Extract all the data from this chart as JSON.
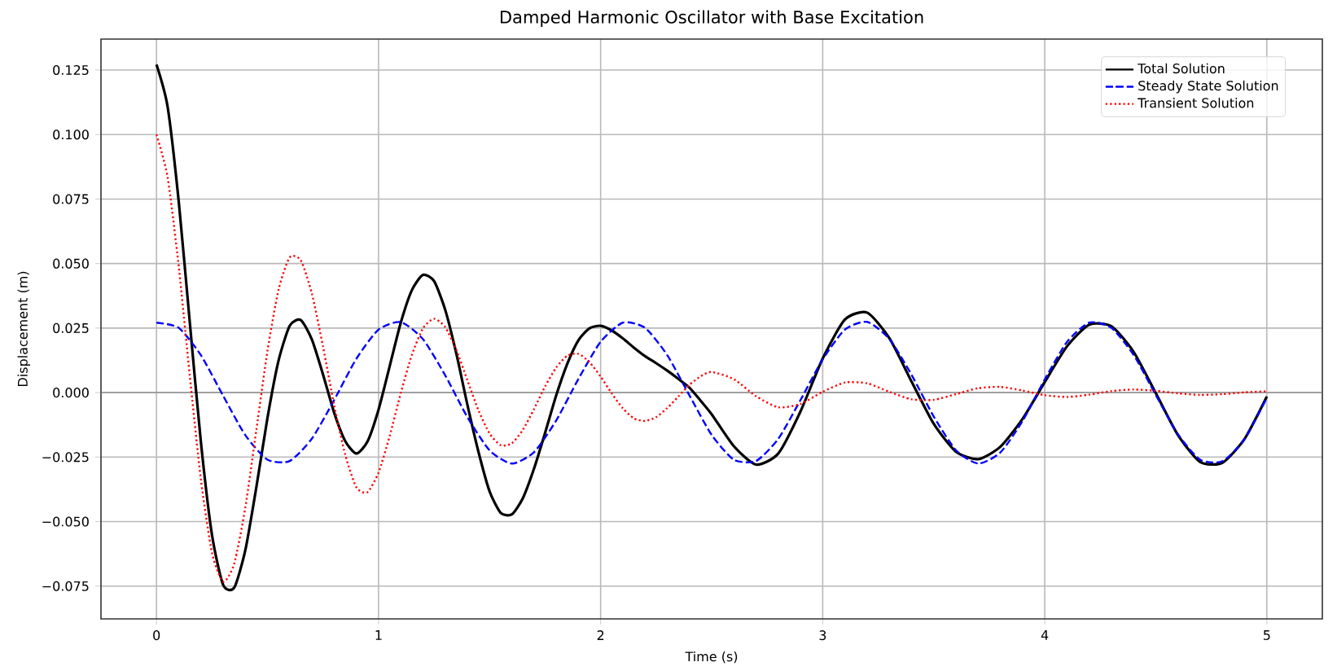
{
  "chart_data": {
    "type": "line",
    "title": "Damped Harmonic Oscillator with Base Excitation",
    "xlabel": "Time (s)",
    "ylabel": "Displacement (m)",
    "xlim": [
      -0.25,
      5.25
    ],
    "xticks": [
      0,
      1,
      2,
      3,
      4,
      5
    ],
    "ylim": [
      -0.0877,
      0.137
    ],
    "yticks": [
      {
        "value": -0.075,
        "label": "−0.075"
      },
      {
        "value": -0.05,
        "label": "−0.050"
      },
      {
        "value": -0.025,
        "label": "−0.025"
      },
      {
        "value": 0,
        "label": "0.000"
      },
      {
        "value": 0.025,
        "label": "0.025"
      },
      {
        "value": 0.05,
        "label": "0.050"
      },
      {
        "value": 0.075,
        "label": "0.075"
      },
      {
        "value": 0.1,
        "label": "0.100"
      },
      {
        "value": 0.125,
        "label": "0.125"
      }
    ],
    "grid": true,
    "legend": "top right",
    "ref_lines": [
      {
        "axis": "y",
        "value": 0,
        "color": "#808080"
      }
    ],
    "series": [
      {
        "name": "Total Solution",
        "color": "#000000",
        "line_style": "solid",
        "x": [
          0,
          0.05,
          0.1,
          0.15,
          0.2,
          0.25,
          0.3,
          0.35,
          0.4,
          0.45,
          0.5,
          0.55,
          0.6,
          0.65,
          0.7,
          0.75,
          0.8,
          0.85,
          0.9,
          0.95,
          1.0,
          1.05,
          1.1,
          1.15,
          1.2,
          1.25,
          1.3,
          1.35,
          1.4,
          1.45,
          1.5,
          1.55,
          1.6,
          1.65,
          1.7,
          1.75,
          1.8,
          1.85,
          1.9,
          1.95,
          2.0,
          2.05,
          2.1,
          2.15,
          2.2,
          2.25,
          2.3,
          2.35,
          2.4,
          2.45,
          2.5,
          2.6,
          2.7,
          2.8,
          2.9,
          3.0,
          3.1,
          3.2,
          3.3,
          3.4,
          3.5,
          3.6,
          3.7,
          3.8,
          3.9,
          4.0,
          4.1,
          4.2,
          4.3,
          4.4,
          4.5,
          4.6,
          4.7,
          4.8,
          4.9,
          5.0
        ],
        "values": [
          0.1271,
          0.1108,
          0.0742,
          0.0272,
          -0.0192,
          -0.0552,
          -0.0745,
          -0.0756,
          -0.0611,
          -0.0365,
          -0.0097,
          0.0125,
          0.0259,
          0.0281,
          0.0205,
          0.007,
          -0.0078,
          -0.0188,
          -0.0236,
          -0.019,
          -0.0066,
          0.0102,
          0.0271,
          0.0397,
          0.0456,
          0.0432,
          0.0321,
          0.0152,
          -0.0047,
          -0.023,
          -0.0383,
          -0.0466,
          -0.0472,
          -0.0409,
          -0.0295,
          -0.0156,
          -0.0011,
          0.0112,
          0.0203,
          0.0249,
          0.0259,
          0.0241,
          0.021,
          0.0174,
          0.0141,
          0.0114,
          0.0085,
          0.0053,
          0.0019,
          -0.0031,
          -0.0084,
          -0.0208,
          -0.0279,
          -0.0236,
          -0.0073,
          0.0132,
          0.0283,
          0.031,
          0.0211,
          0.0043,
          -0.0121,
          -0.0229,
          -0.0258,
          -0.021,
          -0.0102,
          0.0041,
          0.0179,
          0.0263,
          0.0257,
          0.0158,
          -0.0002,
          -0.0165,
          -0.0269,
          -0.0272,
          -0.0179,
          -0.0015
        ]
      },
      {
        "name": "Steady State Solution",
        "color": "#0000ff",
        "line_style": "dashed",
        "x": [
          0,
          0.1,
          0.2,
          0.3,
          0.4,
          0.5,
          0.6,
          0.7,
          0.8,
          0.9,
          1.0,
          1.1,
          1.2,
          1.3,
          1.4,
          1.5,
          1.6,
          1.7,
          1.8,
          1.9,
          2.0,
          2.1,
          2.2,
          2.3,
          2.4,
          2.5,
          2.6,
          2.7,
          2.8,
          2.9,
          3.0,
          3.1,
          3.2,
          3.3,
          3.4,
          3.5,
          3.6,
          3.7,
          3.8,
          3.9,
          4.0,
          4.1,
          4.2,
          4.3,
          4.4,
          4.5,
          4.6,
          4.7,
          4.8,
          4.9,
          5.0
        ],
        "values": [
          0.0271,
          0.0251,
          0.0145,
          -0.0012,
          -0.0165,
          -0.026,
          -0.0265,
          -0.0178,
          -0.0029,
          0.0131,
          0.0244,
          0.0273,
          0.0207,
          0.0067,
          -0.0095,
          -0.0224,
          -0.0275,
          -0.0231,
          -0.0108,
          0.0053,
          0.0197,
          0.0271,
          0.0251,
          0.0145,
          -0.0011,
          -0.0164,
          -0.026,
          -0.0265,
          -0.0179,
          -0.0029,
          0.0129,
          0.0244,
          0.0274,
          0.0208,
          0.0069,
          -0.0093,
          -0.0223,
          -0.0275,
          -0.0232,
          -0.011,
          0.0051,
          0.0196,
          0.0271,
          0.0251,
          0.0146,
          -0.0009,
          -0.0162,
          -0.026,
          -0.0266,
          -0.018,
          -0.002
        ]
      },
      {
        "name": "Transient Solution",
        "color": "#ff0000",
        "line_style": "dotted",
        "x": [
          0,
          0.05,
          0.1,
          0.15,
          0.2,
          0.25,
          0.3,
          0.35,
          0.4,
          0.45,
          0.5,
          0.55,
          0.6,
          0.65,
          0.7,
          0.75,
          0.8,
          0.85,
          0.9,
          0.95,
          1.0,
          1.05,
          1.1,
          1.15,
          1.2,
          1.25,
          1.3,
          1.35,
          1.4,
          1.45,
          1.5,
          1.55,
          1.6,
          1.65,
          1.7,
          1.75,
          1.8,
          1.85,
          1.9,
          1.95,
          2.0,
          2.05,
          2.1,
          2.15,
          2.2,
          2.25,
          2.3,
          2.35,
          2.4,
          2.45,
          2.5,
          2.6,
          2.7,
          2.8,
          2.9,
          3.0,
          3.1,
          3.2,
          3.3,
          3.4,
          3.5,
          3.6,
          3.7,
          3.8,
          3.9,
          4.0,
          4.1,
          4.2,
          4.3,
          4.4,
          4.5,
          4.6,
          4.7,
          4.8,
          4.9,
          5.0
        ],
        "values": [
          0.1,
          0.0835,
          0.0491,
          0.0065,
          -0.0337,
          -0.0621,
          -0.0733,
          -0.0663,
          -0.0446,
          -0.0143,
          0.0163,
          0.04,
          0.0524,
          0.0512,
          0.0383,
          0.0178,
          -0.0049,
          -0.0241,
          -0.0367,
          -0.0386,
          -0.031,
          -0.0169,
          -0.0002,
          0.0146,
          0.0249,
          0.0286,
          0.0254,
          0.0166,
          0.0048,
          -0.0069,
          -0.0159,
          -0.0204,
          -0.0197,
          -0.0144,
          -0.0064,
          0.0024,
          0.0097,
          0.0143,
          0.015,
          0.0118,
          0.0062,
          -0.0003,
          -0.0061,
          -0.01,
          -0.011,
          -0.0095,
          -0.006,
          -0.0015,
          0.003,
          0.0063,
          0.008,
          0.0052,
          -0.0014,
          -0.0057,
          -0.0044,
          0.0003,
          0.0039,
          0.0036,
          0.0003,
          -0.0026,
          -0.0028,
          -0.0006,
          0.0017,
          0.0022,
          0.0008,
          -0.001,
          -0.0017,
          -0.0008,
          0.0006,
          0.0012,
          0.0007,
          -0.0003,
          -0.0009,
          -0.0006,
          0.0001,
          0.0005
        ]
      }
    ]
  }
}
